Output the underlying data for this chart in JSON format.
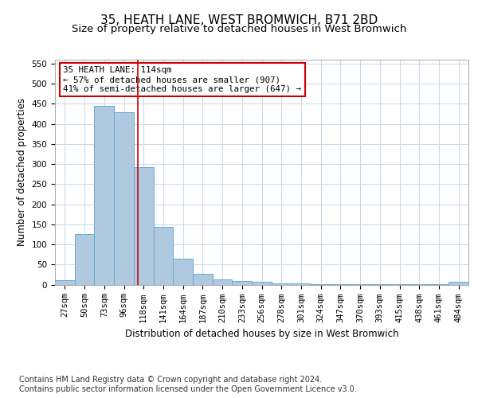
{
  "title1": "35, HEATH LANE, WEST BROMWICH, B71 2BD",
  "title2": "Size of property relative to detached houses in West Bromwich",
  "xlabel": "Distribution of detached houses by size in West Bromwich",
  "ylabel": "Number of detached properties",
  "categories": [
    "27sqm",
    "50sqm",
    "73sqm",
    "96sqm",
    "118sqm",
    "141sqm",
    "164sqm",
    "187sqm",
    "210sqm",
    "233sqm",
    "256sqm",
    "278sqm",
    "301sqm",
    "324sqm",
    "347sqm",
    "370sqm",
    "393sqm",
    "415sqm",
    "438sqm",
    "461sqm",
    "484sqm"
  ],
  "values": [
    10,
    125,
    445,
    430,
    293,
    143,
    65,
    27,
    13,
    8,
    6,
    2,
    2,
    1,
    1,
    1,
    1,
    1,
    1,
    1,
    6
  ],
  "bar_color": "#aec9e0",
  "bar_edge_color": "#6aaad4",
  "marker_line_color": "#cc0000",
  "annotation_text": "35 HEATH LANE: 114sqm\n← 57% of detached houses are smaller (907)\n41% of semi-detached houses are larger (647) →",
  "annotation_box_color": "#ffffff",
  "annotation_box_edge": "#cc0000",
  "ylim": [
    0,
    560
  ],
  "yticks": [
    0,
    50,
    100,
    150,
    200,
    250,
    300,
    350,
    400,
    450,
    500,
    550
  ],
  "footer": "Contains HM Land Registry data © Crown copyright and database right 2024.\nContains public sector information licensed under the Open Government Licence v3.0.",
  "bg_color": "#ffffff",
  "grid_color": "#c8d8e8",
  "title1_fontsize": 11,
  "title2_fontsize": 9.5,
  "axis_label_fontsize": 8.5,
  "tick_fontsize": 7.5,
  "footer_fontsize": 7,
  "annotation_fontsize": 7.8
}
